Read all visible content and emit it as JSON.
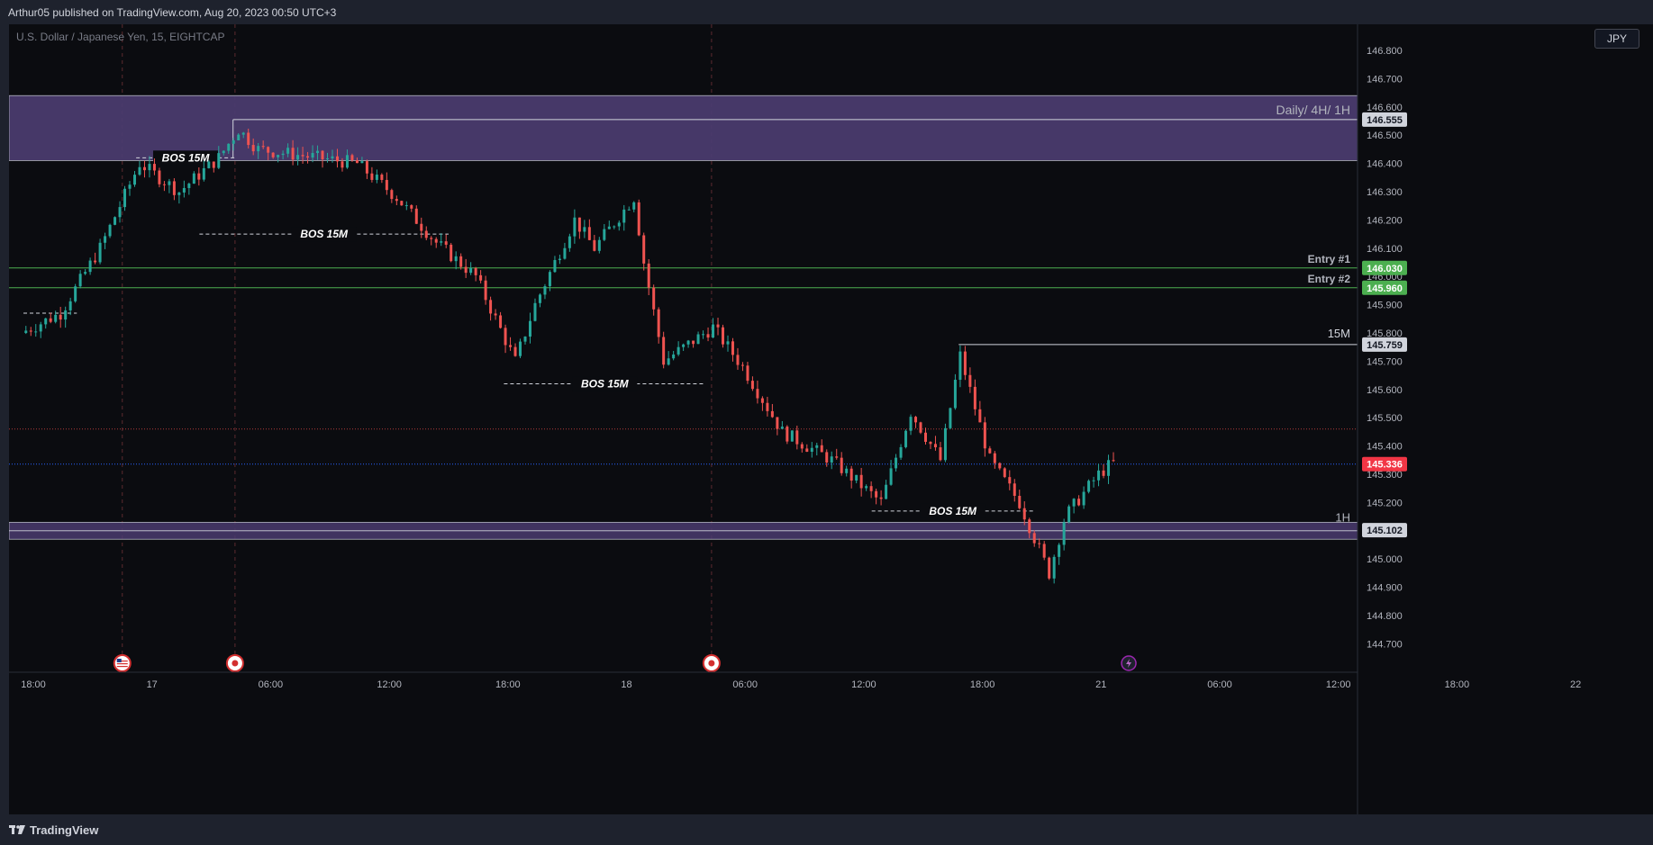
{
  "header": {
    "published_by": "Arthur05 published on TradingView.com, Aug 20, 2023 00:50 UTC+3"
  },
  "legend": {
    "symbol": "U.S. Dollar / Japanese Yen, 15, EIGHTCAP"
  },
  "currency_button": "JPY",
  "footer": {
    "brand": "TradingView"
  },
  "colors": {
    "background": "#0b0c10",
    "bull": "#26a69a",
    "bear": "#ef5350",
    "zone": "#4a3b6e",
    "entry": "#4caf50",
    "current_price": "#f23645",
    "text_axis": "#b2b5be"
  },
  "chart_data": {
    "type": "candlestick",
    "symbol": "USDJPY",
    "timeframe": "15",
    "y_axis": {
      "range": [
        144.64,
        146.86
      ],
      "ticks": [
        "146.800",
        "146.700",
        "146.600",
        "146.500",
        "146.400",
        "146.300",
        "146.200",
        "146.100",
        "146.000",
        "145.900",
        "145.800",
        "145.700",
        "145.600",
        "145.500",
        "145.400",
        "145.300",
        "145.200",
        "145.100",
        "145.000",
        "144.900",
        "144.800",
        "144.700"
      ]
    },
    "x_axis": {
      "ticks": [
        {
          "label": "18:00",
          "hours": 0
        },
        {
          "label": "17",
          "hours": 6
        },
        {
          "label": "06:00",
          "hours": 12
        },
        {
          "label": "12:00",
          "hours": 18
        },
        {
          "label": "18:00",
          "hours": 24
        },
        {
          "label": "18",
          "hours": 30
        },
        {
          "label": "06:00",
          "hours": 36
        },
        {
          "label": "12:00",
          "hours": 42
        },
        {
          "label": "18:00",
          "hours": 48
        },
        {
          "label": "21",
          "hours": 54
        },
        {
          "label": "06:00",
          "hours": 60
        },
        {
          "label": "12:00",
          "hours": 66
        },
        {
          "label": "18:00",
          "hours": 72
        },
        {
          "label": "22",
          "hours": 78
        }
      ]
    },
    "price_path": [
      [
        -0.5,
        145.8
      ],
      [
        1.5,
        145.87
      ],
      [
        3.5,
        146.1
      ],
      [
        5.5,
        146.4
      ],
      [
        7.5,
        146.3
      ],
      [
        9.5,
        146.42
      ],
      [
        10.5,
        146.52
      ],
      [
        11.5,
        146.45
      ],
      [
        16.5,
        146.4
      ],
      [
        18.5,
        146.28
      ],
      [
        20.5,
        146.12
      ],
      [
        22.5,
        146.0
      ],
      [
        24.5,
        145.7
      ],
      [
        25.5,
        145.9
      ],
      [
        27.5,
        146.2
      ],
      [
        28.5,
        146.1
      ],
      [
        30.5,
        146.28
      ],
      [
        31,
        146.05
      ],
      [
        32,
        145.7
      ],
      [
        34.5,
        145.82
      ],
      [
        36,
        145.68
      ],
      [
        38,
        145.45
      ],
      [
        40.5,
        145.35
      ],
      [
        43,
        145.2
      ],
      [
        44.5,
        145.52
      ],
      [
        46,
        145.35
      ],
      [
        47,
        145.72
      ],
      [
        48.5,
        145.35
      ],
      [
        50,
        145.2
      ],
      [
        51.5,
        144.95
      ],
      [
        52.3,
        145.15
      ],
      [
        54,
        145.3
      ],
      [
        54.7,
        145.34
      ]
    ],
    "zones": [
      {
        "label": "Daily/ 4H/ 1H",
        "top": 146.64,
        "bottom": 146.41
      },
      {
        "label": "1H",
        "top": 145.13,
        "bottom": 145.07
      }
    ],
    "levels": [
      {
        "label": "Entry #1",
        "price": 146.03
      },
      {
        "label": "Entry #2",
        "price": 145.96
      },
      {
        "label": "15M",
        "price": 145.759
      },
      {
        "label": "",
        "price": 146.555
      }
    ],
    "price_labels": {
      "zone_high": "146.555",
      "entry1": "146.030",
      "entry2": "145.960",
      "m15": "145.759",
      "current": "145.336",
      "h1": "145.102"
    },
    "current_price": 145.336,
    "reference_line": 145.46,
    "bos_lines": [
      {
        "label": "BOS 15M",
        "price": 146.42,
        "x_start": 5.2,
        "x_end": 10.2
      },
      {
        "label": "BOS 15M",
        "price": 146.15,
        "x_start": 8.4,
        "x_end": 21.0
      },
      {
        "label": "BOS 15M",
        "price": 145.62,
        "x_start": 23.8,
        "x_end": 34.0
      },
      {
        "label": "BOS 15M",
        "price": 145.17,
        "x_start": 42.4,
        "x_end": 50.6
      },
      {
        "label": "",
        "price": 145.87,
        "x_start": -0.5,
        "x_end": 2.2
      }
    ],
    "event_markers": [
      {
        "hours": 4.5,
        "type": "us-flag"
      },
      {
        "hours": 10.2,
        "type": "jp-flag"
      },
      {
        "hours": 34.3,
        "type": "jp-flag"
      },
      {
        "hours": 55.4,
        "type": "lightning"
      }
    ]
  }
}
